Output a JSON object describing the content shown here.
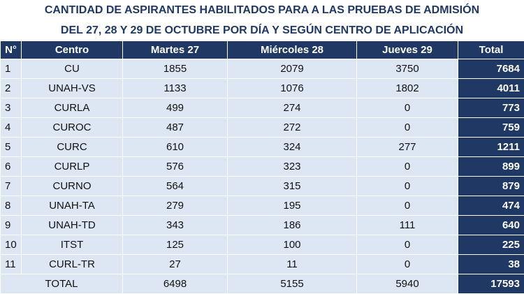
{
  "header": {
    "title": "CANTIDAD DE ASPIRANTES HABILITADOS PARA A LAS PRUEBAS DE ADMISIÓN",
    "subtitle": "DEL 27, 28 Y 29 DE OCTUBRE POR DÍA Y SEGÚN CENTRO DE APLICACIÓN"
  },
  "table": {
    "columns": [
      "N°",
      "Centro",
      "Martes 27",
      "Miércoles 28",
      "Jueves 29",
      "Total"
    ],
    "rows": [
      [
        1,
        "CU",
        1855,
        2079,
        3750,
        7684
      ],
      [
        2,
        "UNAH-VS",
        1133,
        1076,
        1802,
        4011
      ],
      [
        3,
        "CURLA",
        499,
        274,
        0,
        773
      ],
      [
        4,
        "CUROC",
        487,
        272,
        0,
        759
      ],
      [
        5,
        "CURC",
        610,
        324,
        277,
        1211
      ],
      [
        6,
        "CURLP",
        576,
        323,
        0,
        899
      ],
      [
        7,
        "CURNO",
        564,
        315,
        0,
        879
      ],
      [
        8,
        "UNAH-TA",
        279,
        195,
        0,
        474
      ],
      [
        9,
        "UNAH-TD",
        343,
        186,
        111,
        640
      ],
      [
        10,
        "ITST",
        125,
        100,
        0,
        225
      ],
      [
        11,
        "CURL-TR",
        27,
        11,
        0,
        38
      ]
    ],
    "total": {
      "label": "TOTAL",
      "values": [
        6498,
        5155,
        5940,
        17593
      ]
    }
  }
}
